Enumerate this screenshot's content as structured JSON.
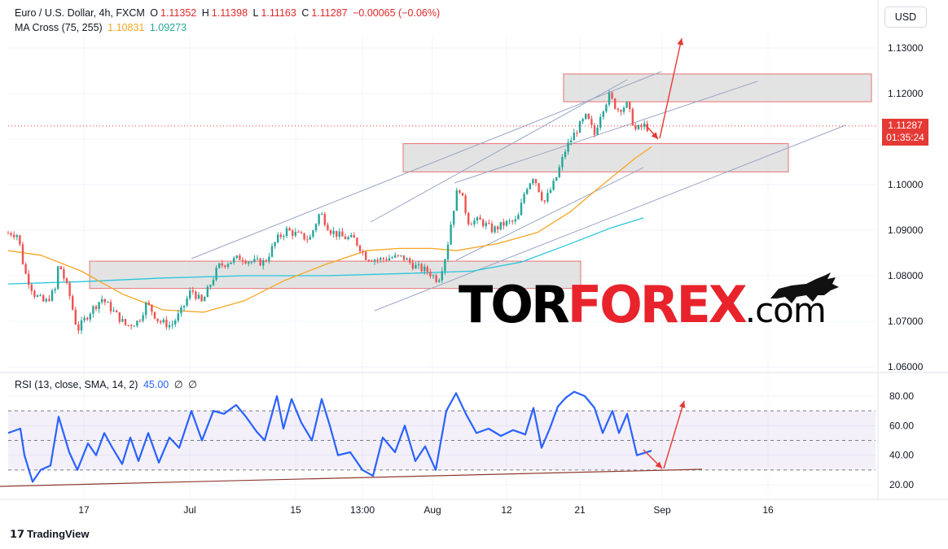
{
  "header": {
    "symbol": "Euro / U.S. Dollar, 4h, FXCM",
    "o_label": "O",
    "o": "1.11352",
    "h_label": "H",
    "h": "1.11398",
    "l_label": "L",
    "l": "1.11163",
    "c_label": "C",
    "c": "1.11287",
    "change": "−0.00065 (−0.06%)",
    "ma_label": "MA Cross (75, 255)",
    "ma_fast": "1.10831",
    "ma_slow": "1.09273",
    "rsi_label": "RSI (13, close, SMA, 14, 2)",
    "rsi_value": "45.00",
    "rsi_na1": "∅",
    "rsi_na2": "∅"
  },
  "currency_button": "USD",
  "price_badge": {
    "price": "1.11287",
    "countdown": "01:35:24"
  },
  "branding": {
    "watermark_a": "TOR",
    "watermark_b": "FOREX",
    "watermark_c": ".com",
    "footer": "TradingView"
  },
  "colors": {
    "up": "#26a69a",
    "down": "#ef5350",
    "ma_fast": "#f5a623",
    "ma_slow": "#26c6da",
    "rsi": "#2962ff",
    "arrow": "#e53935",
    "zone": "#d9d9d9"
  },
  "chart_data": {
    "type": "candlestick",
    "price_axis": {
      "ticks": [
        1.13,
        1.12,
        1.11,
        1.1,
        1.09,
        1.08,
        1.07,
        1.06
      ],
      "labels": [
        "1.13000",
        "1.12000",
        "1.11000",
        "1.10000",
        "1.09000",
        "1.08000",
        "1.07000",
        "1.06000"
      ],
      "range": [
        1.0575,
        1.1345
      ]
    },
    "rsi_axis": {
      "ticks": [
        80,
        60,
        40,
        20
      ],
      "labels": [
        "80.00",
        "60.00",
        "40.00",
        "20.00"
      ],
      "levels": [
        70,
        50,
        30
      ],
      "range": [
        14,
        92
      ]
    },
    "time_axis": [
      "17",
      "Jul",
      "15",
      "13:00",
      "Aug",
      "12",
      "21",
      "Sep",
      "16"
    ],
    "price_path": [
      [
        0,
        1.0885
      ],
      [
        12,
        1.0895
      ],
      [
        22,
        1.089
      ],
      [
        30,
        1.081
      ],
      [
        42,
        1.076
      ],
      [
        55,
        1.074
      ],
      [
        68,
        1.077
      ],
      [
        72,
        1.083
      ],
      [
        85,
        1.076
      ],
      [
        95,
        1.068
      ],
      [
        110,
        1.072
      ],
      [
        125,
        1.075
      ],
      [
        140,
        1.072
      ],
      [
        155,
        1.069
      ],
      [
        170,
        1.07
      ],
      [
        180,
        1.074
      ],
      [
        195,
        1.07
      ],
      [
        210,
        1.069
      ],
      [
        222,
        1.072
      ],
      [
        235,
        1.077
      ],
      [
        248,
        1.074
      ],
      [
        258,
        1.078
      ],
      [
        268,
        1.082
      ],
      [
        280,
        1.083
      ],
      [
        295,
        1.084
      ],
      [
        310,
        1.083
      ],
      [
        325,
        1.083
      ],
      [
        340,
        1.088
      ],
      [
        352,
        1.09
      ],
      [
        365,
        1.089
      ],
      [
        380,
        1.088
      ],
      [
        393,
        1.094
      ],
      [
        405,
        1.09
      ],
      [
        420,
        1.0885
      ],
      [
        435,
        1.088
      ],
      [
        450,
        1.084
      ],
      [
        465,
        1.0835
      ],
      [
        480,
        1.084
      ],
      [
        495,
        1.084
      ],
      [
        510,
        1.082
      ],
      [
        525,
        1.081
      ],
      [
        538,
        1.079
      ],
      [
        548,
        1.085
      ],
      [
        555,
        1.093
      ],
      [
        563,
        1.1
      ],
      [
        575,
        1.092
      ],
      [
        590,
        1.092
      ],
      [
        605,
        1.09
      ],
      [
        620,
        1.0915
      ],
      [
        635,
        1.092
      ],
      [
        645,
        1.099
      ],
      [
        655,
        1.102
      ],
      [
        668,
        1.096
      ],
      [
        682,
        1.101
      ],
      [
        695,
        1.108
      ],
      [
        708,
        1.112
      ],
      [
        720,
        1.115
      ],
      [
        730,
        1.111
      ],
      [
        738,
        1.116
      ],
      [
        748,
        1.1195
      ],
      [
        758,
        1.1165
      ],
      [
        770,
        1.1175
      ],
      [
        780,
        1.112
      ],
      [
        792,
        1.113
      ],
      [
        800,
        1.1115
      ]
    ],
    "ma_fast": [
      [
        10,
        1.0855
      ],
      [
        50,
        1.0845
      ],
      [
        100,
        1.081
      ],
      [
        150,
        1.076
      ],
      [
        200,
        1.0725
      ],
      [
        250,
        1.072
      ],
      [
        300,
        1.0745
      ],
      [
        350,
        1.079
      ],
      [
        400,
        1.0825
      ],
      [
        450,
        1.0855
      ],
      [
        490,
        1.086
      ],
      [
        530,
        1.086
      ],
      [
        560,
        1.0855
      ],
      [
        610,
        1.087
      ],
      [
        660,
        1.0895
      ],
      [
        700,
        1.094
      ],
      [
        740,
        1.1
      ],
      [
        780,
        1.1058
      ],
      [
        800,
        1.1083
      ]
    ],
    "ma_slow": [
      [
        10,
        1.0782
      ],
      [
        100,
        1.0787
      ],
      [
        200,
        1.0795
      ],
      [
        300,
        1.08
      ],
      [
        400,
        1.08
      ],
      [
        500,
        1.0805
      ],
      [
        580,
        1.081
      ],
      [
        640,
        1.083
      ],
      [
        700,
        1.087
      ],
      [
        750,
        1.0905
      ],
      [
        790,
        1.0927
      ]
    ],
    "rsi": [
      [
        10,
        55
      ],
      [
        25,
        58
      ],
      [
        30,
        40
      ],
      [
        40,
        22
      ],
      [
        50,
        30
      ],
      [
        62,
        33
      ],
      [
        72,
        66
      ],
      [
        85,
        42
      ],
      [
        95,
        30
      ],
      [
        108,
        48
      ],
      [
        118,
        40
      ],
      [
        128,
        55
      ],
      [
        138,
        45
      ],
      [
        150,
        34
      ],
      [
        160,
        52
      ],
      [
        170,
        36
      ],
      [
        182,
        55
      ],
      [
        195,
        35
      ],
      [
        208,
        52
      ],
      [
        220,
        45
      ],
      [
        235,
        70
      ],
      [
        248,
        50
      ],
      [
        262,
        70
      ],
      [
        275,
        68
      ],
      [
        290,
        74
      ],
      [
        302,
        66
      ],
      [
        315,
        56
      ],
      [
        325,
        50
      ],
      [
        340,
        80
      ],
      [
        348,
        58
      ],
      [
        358,
        78
      ],
      [
        370,
        62
      ],
      [
        383,
        50
      ],
      [
        395,
        78
      ],
      [
        405,
        60
      ],
      [
        415,
        40
      ],
      [
        430,
        42
      ],
      [
        445,
        30
      ],
      [
        458,
        26
      ],
      [
        470,
        52
      ],
      [
        485,
        42
      ],
      [
        497,
        60
      ],
      [
        510,
        36
      ],
      [
        522,
        46
      ],
      [
        535,
        30
      ],
      [
        548,
        70
      ],
      [
        560,
        82
      ],
      [
        572,
        68
      ],
      [
        585,
        55
      ],
      [
        600,
        58
      ],
      [
        615,
        53
      ],
      [
        630,
        57
      ],
      [
        645,
        54
      ],
      [
        655,
        72
      ],
      [
        665,
        45
      ],
      [
        675,
        58
      ],
      [
        685,
        73
      ],
      [
        695,
        79
      ],
      [
        705,
        83
      ],
      [
        718,
        80
      ],
      [
        730,
        72
      ],
      [
        740,
        55
      ],
      [
        752,
        70
      ],
      [
        760,
        55
      ],
      [
        770,
        68
      ],
      [
        782,
        40
      ],
      [
        800,
        43
      ]
    ],
    "zones": [
      {
        "from_index": 110,
        "to_index": 713,
        "low": 1.0772,
        "high": 1.0832
      },
      {
        "from_index": 495,
        "to_index": 968,
        "low": 1.1028,
        "high": 1.109
      },
      {
        "from_index": 692,
        "to_index": 1070,
        "low": 1.1182,
        "high": 1.1243
      }
    ]
  }
}
